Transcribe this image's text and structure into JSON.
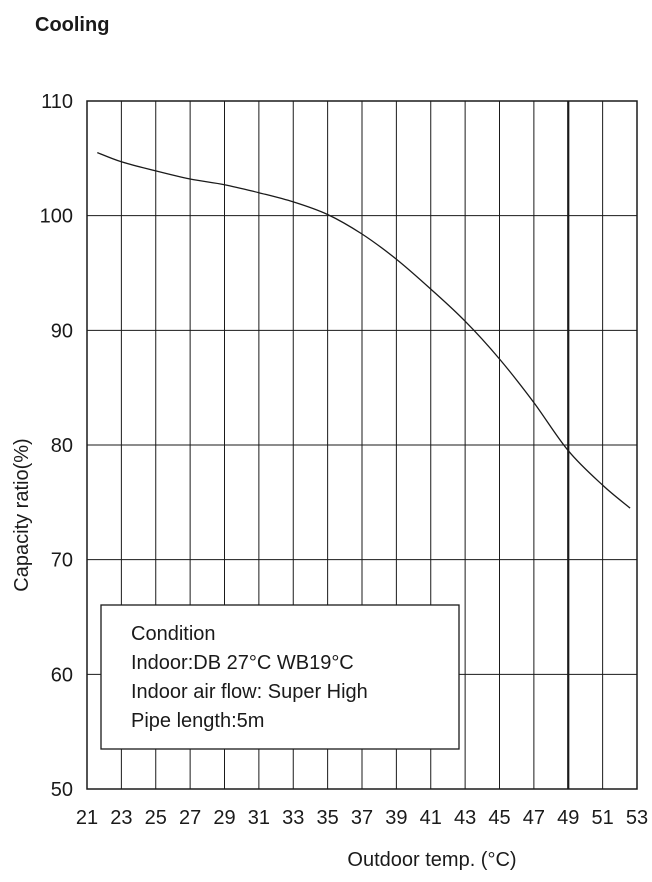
{
  "chart_data": {
    "type": "line",
    "title": "Cooling",
    "xlabel": "Outdoor temp. (°C)",
    "ylabel": "Capacity ratio(%)",
    "xlim": [
      21,
      53
    ],
    "ylim": [
      50,
      110
    ],
    "x_ticks": [
      21,
      23,
      25,
      27,
      29,
      31,
      33,
      35,
      37,
      39,
      41,
      43,
      45,
      47,
      49,
      51,
      53
    ],
    "y_ticks": [
      50,
      60,
      70,
      80,
      90,
      100,
      110
    ],
    "grid": true,
    "series": [
      {
        "x": [
          21.6,
          23,
          25,
          27,
          29,
          31,
          33,
          35,
          37,
          39,
          41,
          43,
          45,
          47,
          49,
          51,
          52.6
        ],
        "y": [
          105.5,
          104.7,
          103.9,
          103.2,
          102.7,
          102.0,
          101.2,
          100.1,
          98.4,
          96.2,
          93.6,
          90.8,
          87.5,
          83.7,
          79.5,
          76.5,
          74.5
        ]
      }
    ],
    "annotation": {
      "lines": [
        "Condition",
        "Indoor:DB 27°C  WB19°C",
        "Indoor air flow: Super High",
        "Pipe length:5m"
      ]
    }
  }
}
